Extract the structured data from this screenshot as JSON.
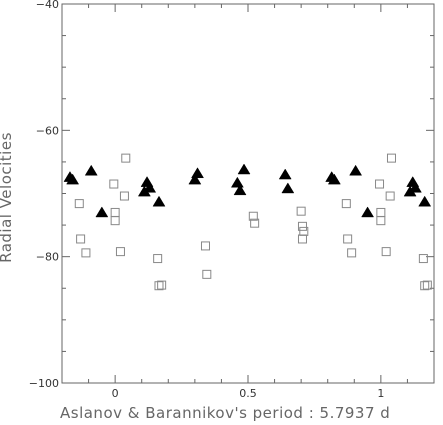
{
  "chart_data": {
    "type": "scatter",
    "title": "",
    "xlabel": "Aslanov & Barannikov's period : 5.7937 d",
    "ylabel": "Radial Velocities",
    "xlim": [
      -0.2,
      1.2
    ],
    "ylim": [
      -100,
      -40
    ],
    "x_ticks": [
      {
        "value": 0,
        "label": "0"
      },
      {
        "value": 0.5,
        "label": "0.5"
      },
      {
        "value": 1,
        "label": "1"
      }
    ],
    "y_ticks": [
      {
        "value": -100,
        "label": "−100"
      },
      {
        "value": -80,
        "label": "−80"
      },
      {
        "value": -60,
        "label": "−60"
      },
      {
        "value": -40,
        "label": "−40"
      }
    ],
    "x_minor_step": 0.1,
    "y_minor_step": 5,
    "grid": false,
    "series": [
      {
        "marker": "triangle-filled",
        "color": "#000000",
        "points": [
          {
            "x": -0.17,
            "y": -67.4
          },
          {
            "x": -0.16,
            "y": -67.8
          },
          {
            "x": -0.09,
            "y": -66.4
          },
          {
            "x": -0.05,
            "y": -73.0
          },
          {
            "x": 0.11,
            "y": -69.7
          },
          {
            "x": 0.12,
            "y": -68.2
          },
          {
            "x": 0.13,
            "y": -69.1
          },
          {
            "x": 0.165,
            "y": -71.3
          },
          {
            "x": 0.3,
            "y": -67.8
          },
          {
            "x": 0.31,
            "y": -66.8
          },
          {
            "x": 0.46,
            "y": -68.3
          },
          {
            "x": 0.47,
            "y": -69.5
          },
          {
            "x": 0.485,
            "y": -66.2
          },
          {
            "x": 0.64,
            "y": -67.0
          },
          {
            "x": 0.65,
            "y": -69.2
          },
          {
            "x": 0.815,
            "y": -67.4
          },
          {
            "x": 0.825,
            "y": -67.8
          },
          {
            "x": 0.905,
            "y": -66.4
          },
          {
            "x": 0.95,
            "y": -73.0
          },
          {
            "x": 1.11,
            "y": -69.7
          },
          {
            "x": 1.12,
            "y": -68.2
          },
          {
            "x": 1.13,
            "y": -69.1
          },
          {
            "x": 1.165,
            "y": -71.3
          }
        ]
      },
      {
        "marker": "square-open",
        "color": "#888888",
        "points": [
          {
            "x": -0.135,
            "y": -71.6
          },
          {
            "x": -0.13,
            "y": -77.2
          },
          {
            "x": -0.11,
            "y": -79.4
          },
          {
            "x": -0.005,
            "y": -68.5
          },
          {
            "x": 0.0,
            "y": -73.0
          },
          {
            "x": 0.0,
            "y": -74.3
          },
          {
            "x": 0.02,
            "y": -79.2
          },
          {
            "x": 0.035,
            "y": -70.4
          },
          {
            "x": 0.04,
            "y": -64.4
          },
          {
            "x": 0.16,
            "y": -80.3
          },
          {
            "x": 0.165,
            "y": -84.6
          },
          {
            "x": 0.175,
            "y": -84.5
          },
          {
            "x": 0.34,
            "y": -78.3
          },
          {
            "x": 0.345,
            "y": -82.8
          },
          {
            "x": 0.52,
            "y": -73.6
          },
          {
            "x": 0.525,
            "y": -74.7
          },
          {
            "x": 0.7,
            "y": -72.8
          },
          {
            "x": 0.705,
            "y": -75.2
          },
          {
            "x": 0.71,
            "y": -76.0
          },
          {
            "x": 0.705,
            "y": -77.2
          },
          {
            "x": 0.87,
            "y": -71.6
          },
          {
            "x": 0.875,
            "y": -77.2
          },
          {
            "x": 0.89,
            "y": -79.4
          },
          {
            "x": 0.995,
            "y": -68.5
          },
          {
            "x": 1.0,
            "y": -73.0
          },
          {
            "x": 1.0,
            "y": -74.3
          },
          {
            "x": 1.02,
            "y": -79.2
          },
          {
            "x": 1.035,
            "y": -70.4
          },
          {
            "x": 1.04,
            "y": -64.4
          },
          {
            "x": 1.16,
            "y": -80.3
          },
          {
            "x": 1.165,
            "y": -84.6
          },
          {
            "x": 1.175,
            "y": -84.5
          }
        ]
      }
    ]
  }
}
